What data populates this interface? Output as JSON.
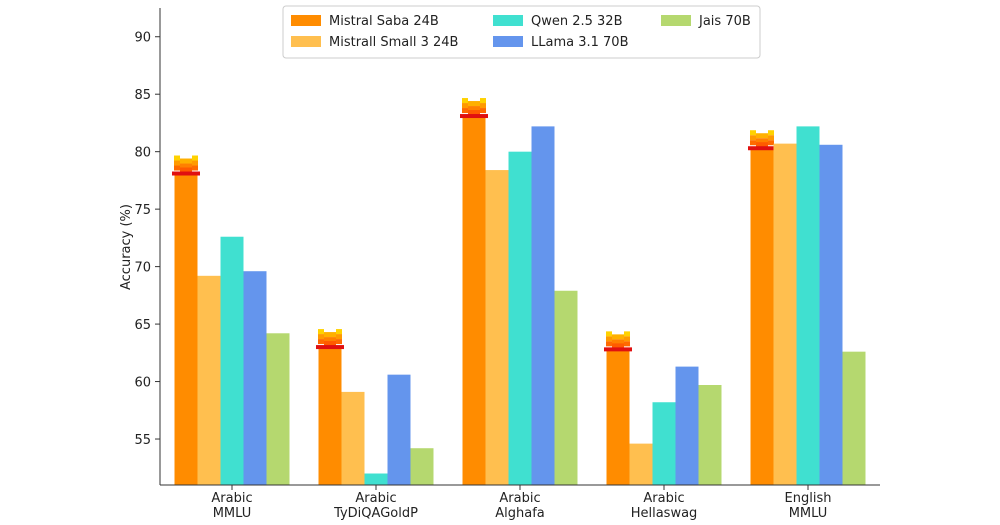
{
  "chart_data": {
    "type": "bar",
    "title": "",
    "xlabel": "",
    "ylabel": "Accuracy (%)",
    "ylim": [
      51,
      92.5
    ],
    "yticks": [
      55,
      60,
      65,
      70,
      75,
      80,
      85,
      90
    ],
    "grid": false,
    "legend_position": "top-center",
    "categories": [
      [
        "Arabic",
        "MMLU"
      ],
      [
        "Arabic",
        "TyDiQAGoldP"
      ],
      [
        "Arabic",
        "Alghafa"
      ],
      [
        "Arabic",
        "Hellaswag"
      ],
      [
        "English",
        "MMLU"
      ]
    ],
    "series": [
      {
        "name": "Mistral Saba 24B",
        "color": "#ff8c00",
        "values": [
          78.1,
          63.0,
          83.1,
          62.8,
          80.3
        ],
        "marker_icon": "mistral-logo-icon"
      },
      {
        "name": "Mistrall Small 3 24B",
        "color": "#ffbf4f",
        "values": [
          69.2,
          59.1,
          78.4,
          54.6,
          80.7
        ]
      },
      {
        "name": "Qwen 2.5 32B",
        "color": "#40e0d0",
        "values": [
          72.6,
          52.0,
          80.0,
          58.2,
          82.2
        ]
      },
      {
        "name": "LLama 3.1 70B",
        "color": "#6495ed",
        "values": [
          69.6,
          60.6,
          82.2,
          61.3,
          80.6
        ]
      },
      {
        "name": "Jais 70B",
        "color": "#b5d86f",
        "values": [
          64.2,
          54.2,
          67.9,
          59.7,
          62.6
        ]
      }
    ]
  }
}
